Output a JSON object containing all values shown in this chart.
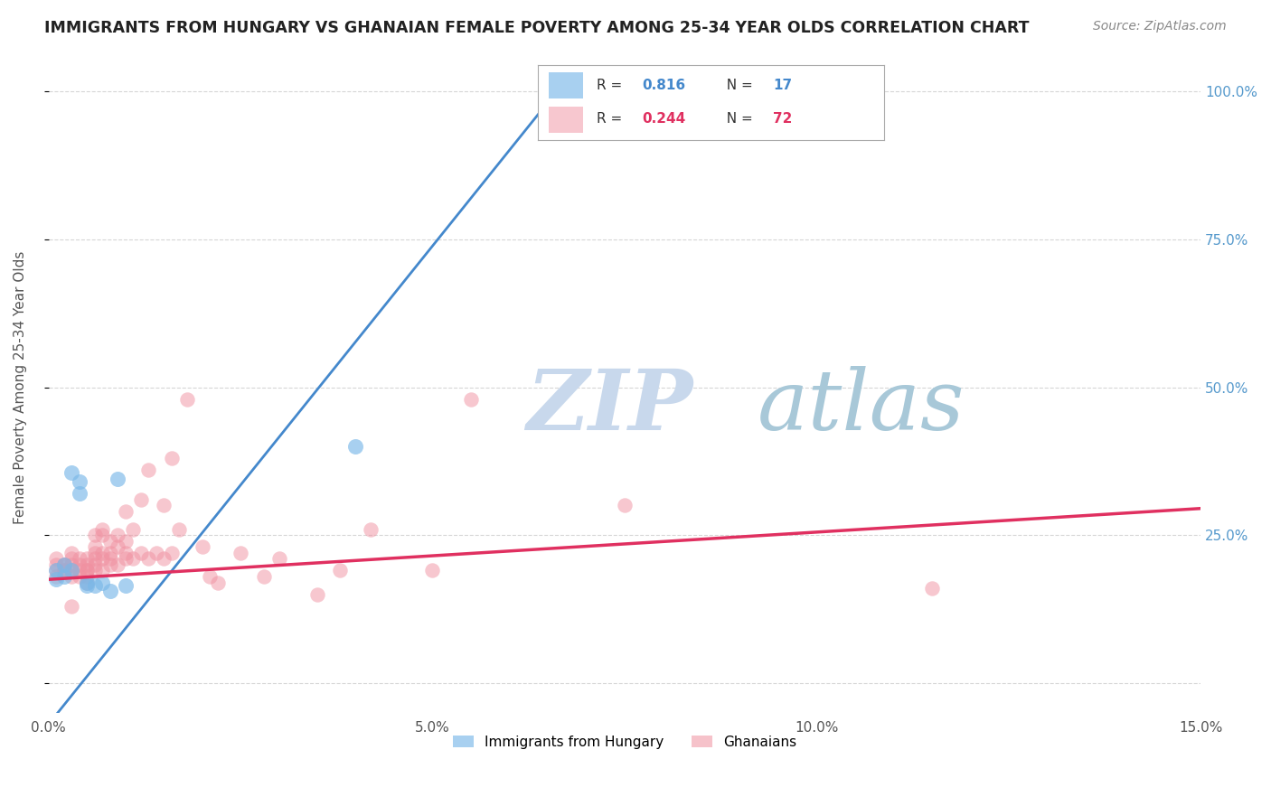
{
  "title": "IMMIGRANTS FROM HUNGARY VS GHANAIAN FEMALE POVERTY AMONG 25-34 YEAR OLDS CORRELATION CHART",
  "source": "Source: ZipAtlas.com",
  "ylabel": "Female Poverty Among 25-34 Year Olds",
  "xlim": [
    0.0,
    0.15
  ],
  "ylim": [
    -0.05,
    1.05
  ],
  "xticks": [
    0.0,
    0.05,
    0.1,
    0.15
  ],
  "xtick_labels": [
    "0.0%",
    "5.0%",
    "10.0%",
    "15.0%"
  ],
  "yticks": [
    0.0,
    0.25,
    0.5,
    0.75,
    1.0
  ],
  "ytick_labels": [
    "",
    "25.0%",
    "50.0%",
    "75.0%",
    "100.0%"
  ],
  "legend1_label": "Immigrants from Hungary",
  "legend2_label": "Ghanaians",
  "legend1_R": "0.816",
  "legend1_N": "17",
  "legend2_R": "0.244",
  "legend2_N": "72",
  "blue_color": "#7ab8e8",
  "pink_color": "#f090a0",
  "blue_line_color": "#4488cc",
  "pink_line_color": "#e03060",
  "watermark_zip": "ZIP",
  "watermark_atlas": "atlas",
  "watermark_color_zip": "#c8d8ec",
  "watermark_color_atlas": "#a8c8d8",
  "blue_scatter_x": [
    0.001,
    0.001,
    0.002,
    0.002,
    0.003,
    0.003,
    0.004,
    0.004,
    0.005,
    0.005,
    0.006,
    0.007,
    0.008,
    0.009,
    0.01,
    0.04,
    0.065
  ],
  "blue_scatter_y": [
    0.175,
    0.19,
    0.18,
    0.2,
    0.19,
    0.355,
    0.32,
    0.34,
    0.17,
    0.165,
    0.165,
    0.17,
    0.155,
    0.345,
    0.165,
    0.4,
    0.98
  ],
  "pink_scatter_x": [
    0.001,
    0.001,
    0.001,
    0.001,
    0.002,
    0.002,
    0.002,
    0.002,
    0.003,
    0.003,
    0.003,
    0.003,
    0.003,
    0.003,
    0.004,
    0.004,
    0.004,
    0.004,
    0.005,
    0.005,
    0.005,
    0.005,
    0.005,
    0.005,
    0.006,
    0.006,
    0.006,
    0.006,
    0.006,
    0.006,
    0.007,
    0.007,
    0.007,
    0.007,
    0.007,
    0.008,
    0.008,
    0.008,
    0.008,
    0.009,
    0.009,
    0.009,
    0.01,
    0.01,
    0.01,
    0.01,
    0.011,
    0.011,
    0.012,
    0.012,
    0.013,
    0.013,
    0.014,
    0.015,
    0.015,
    0.016,
    0.016,
    0.017,
    0.018,
    0.02,
    0.021,
    0.022,
    0.025,
    0.028,
    0.03,
    0.035,
    0.038,
    0.042,
    0.05,
    0.055,
    0.075,
    0.115
  ],
  "pink_scatter_y": [
    0.2,
    0.21,
    0.18,
    0.19,
    0.19,
    0.2,
    0.19,
    0.2,
    0.13,
    0.18,
    0.19,
    0.2,
    0.21,
    0.22,
    0.2,
    0.21,
    0.19,
    0.18,
    0.19,
    0.18,
    0.2,
    0.21,
    0.17,
    0.19,
    0.19,
    0.21,
    0.22,
    0.2,
    0.23,
    0.25,
    0.21,
    0.22,
    0.25,
    0.19,
    0.26,
    0.2,
    0.22,
    0.21,
    0.24,
    0.2,
    0.23,
    0.25,
    0.21,
    0.22,
    0.24,
    0.29,
    0.21,
    0.26,
    0.22,
    0.31,
    0.21,
    0.36,
    0.22,
    0.21,
    0.3,
    0.22,
    0.38,
    0.26,
    0.48,
    0.23,
    0.18,
    0.17,
    0.22,
    0.18,
    0.21,
    0.15,
    0.19,
    0.26,
    0.19,
    0.48,
    0.3,
    0.16
  ],
  "blue_line_x0": 0.0,
  "blue_line_y0": -0.07,
  "blue_line_x1": 0.068,
  "blue_line_y1": 1.03,
  "pink_line_x0": 0.0,
  "pink_line_y0": 0.175,
  "pink_line_x1": 0.15,
  "pink_line_y1": 0.295
}
